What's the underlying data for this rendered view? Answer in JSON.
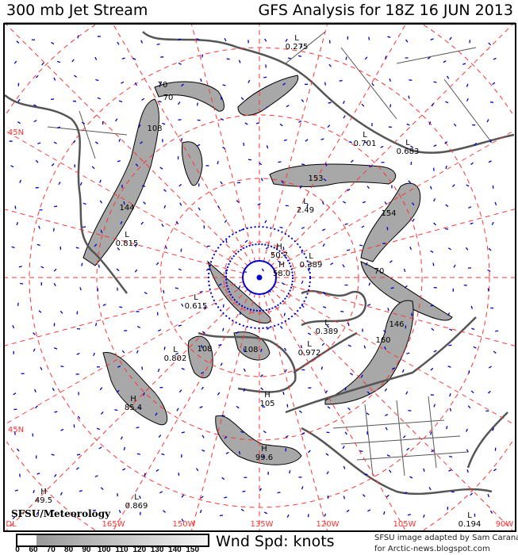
{
  "header": {
    "title": "300 mb Jet Stream",
    "subtitle": "GFS Analysis for 18Z 16 JUN 2013"
  },
  "map": {
    "projection": "polar-stereographic",
    "longitude_labels": [
      "DL",
      "165W",
      "150W",
      "135W",
      "120W",
      "105W",
      "90W"
    ],
    "latitude_labels": [
      "45N",
      "45N"
    ],
    "pressure_centers": [
      {
        "type": "L",
        "value": "0.275"
      },
      {
        "type": "L",
        "value": "0.701"
      },
      {
        "type": "L",
        "value": "0.683"
      },
      {
        "type": "L",
        "value": "2.49"
      },
      {
        "type": "H",
        "value": "50.7"
      },
      {
        "type": "H",
        "value": "58.0"
      },
      {
        "type": "L",
        "value": "0.389"
      },
      {
        "type": "L",
        "value": "0.815"
      },
      {
        "type": "L",
        "value": "0.615"
      },
      {
        "type": "L",
        "value": "0.389"
      },
      {
        "type": "L",
        "value": "0.972"
      },
      {
        "type": "L",
        "value": "0.802"
      },
      {
        "type": "H",
        "value": "85.4"
      },
      {
        "type": "H",
        "value": "99.6"
      },
      {
        "type": "H",
        "value": "105"
      },
      {
        "type": "H",
        "value": "49.5"
      },
      {
        "type": "L",
        "value": "0.869"
      },
      {
        "type": "L",
        "value": "0.194"
      }
    ],
    "jet_max_labels": [
      "70",
      "70",
      "108",
      "144",
      "153",
      "154",
      "70",
      "146",
      "160",
      "108",
      "108"
    ],
    "credit_logo": "SFSU/Meteorology",
    "colors": {
      "grid": "#ff3333",
      "coast": "#555555",
      "wind": "#0000cc",
      "jet": "#a8a8a8",
      "contour": "#000000"
    }
  },
  "legend": {
    "title": "Wnd Spd: knots",
    "ticks": [
      "0",
      "60",
      "70",
      "80",
      "90",
      "100",
      "110",
      "120",
      "130",
      "140",
      "150"
    ]
  },
  "credits": {
    "line1": "SFSU image adapted by Sam Carana",
    "line2": "for Arctic-news.blogspot.com"
  }
}
